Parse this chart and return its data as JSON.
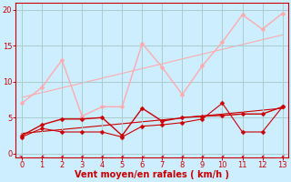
{
  "background_color": "#cceeff",
  "grid_color": "#aacccc",
  "xlabel": "Vent moyen/en rafales ( km/h )",
  "xlabel_color": "#cc0000",
  "xlabel_fontsize": 7,
  "xticks": [
    0,
    1,
    2,
    3,
    4,
    5,
    6,
    7,
    8,
    9,
    10,
    11,
    12,
    13
  ],
  "yticks": [
    0,
    5,
    10,
    15,
    20
  ],
  "tick_color": "#cc0000",
  "axis_color": "#cc0000",
  "ylim": [
    -0.5,
    21
  ],
  "xlim": [
    -0.3,
    13.3
  ],
  "line1_x": [
    0,
    1,
    2,
    3,
    4,
    5,
    6,
    7,
    8,
    9,
    10,
    11,
    12,
    13
  ],
  "line1_y": [
    7.0,
    9.2,
    13.0,
    5.2,
    6.5,
    6.5,
    15.3,
    12.0,
    8.2,
    12.2,
    15.5,
    19.3,
    17.3,
    19.5
  ],
  "line1_color": "#ffaaaa",
  "line1_lw": 1.0,
  "line2_x": [
    0,
    1,
    2,
    3,
    4,
    5,
    6,
    7,
    8,
    9,
    10,
    11,
    12,
    13
  ],
  "line2_y": [
    2.5,
    4.0,
    4.8,
    4.8,
    5.0,
    2.5,
    6.3,
    4.5,
    5.0,
    5.2,
    5.3,
    5.5,
    5.5,
    6.5
  ],
  "line2_color": "#cc0000",
  "line2_lw": 1.0,
  "line3_x": [
    0,
    1,
    2,
    3,
    4,
    5,
    6,
    7,
    8,
    9,
    10,
    11,
    12,
    13
  ],
  "line3_y": [
    2.3,
    3.5,
    3.0,
    3.0,
    3.0,
    2.3,
    3.8,
    4.0,
    4.3,
    4.8,
    7.0,
    3.0,
    3.0,
    6.5
  ],
  "line3_color": "#cc0000",
  "line3_lw": 0.8,
  "trend1_x": [
    0,
    13
  ],
  "trend1_y": [
    7.8,
    16.5
  ],
  "trend1_color": "#ffaaaa",
  "trend1_lw": 0.8,
  "trend2_x": [
    0,
    13
  ],
  "trend2_y": [
    2.8,
    6.3
  ],
  "trend2_color": "#cc0000",
  "trend2_lw": 0.8,
  "arrow_color": "#cc0000",
  "wind_arrows_x": [
    0,
    1,
    2,
    3,
    4,
    5,
    6,
    7,
    8,
    9,
    10,
    11,
    12,
    13
  ],
  "marker_size": 2.5,
  "marker_color": "#cc0000",
  "marker1_color": "#ffaaaa"
}
